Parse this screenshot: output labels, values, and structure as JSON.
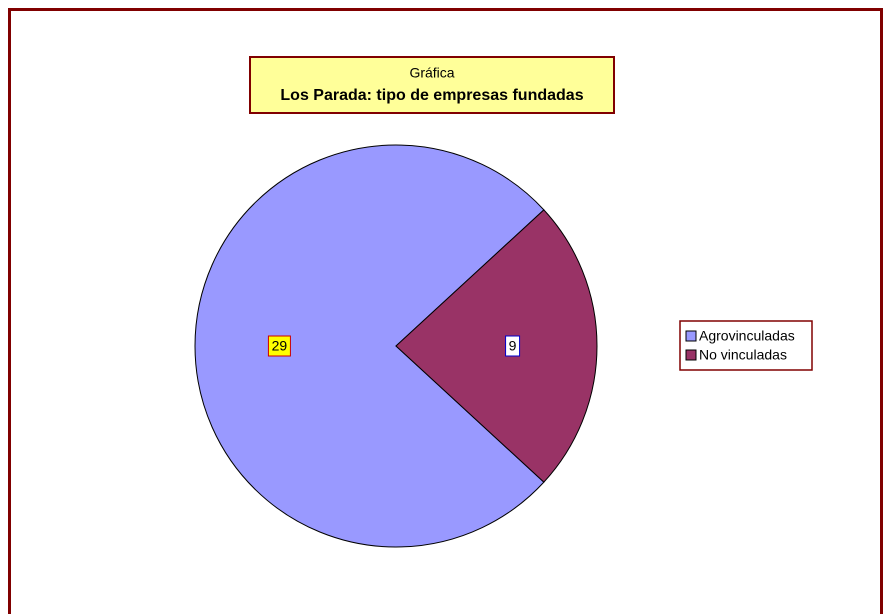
{
  "chart_data": {
    "type": "pie",
    "title": "Gráfica",
    "subtitle": "Los Parada: tipo de  empresas fundadas",
    "categories": [
      "Agrovinculadas",
      "No vinculadas"
    ],
    "values": [
      29,
      9
    ],
    "colors": [
      "#9999ff",
      "#993366"
    ],
    "legend": "right"
  }
}
